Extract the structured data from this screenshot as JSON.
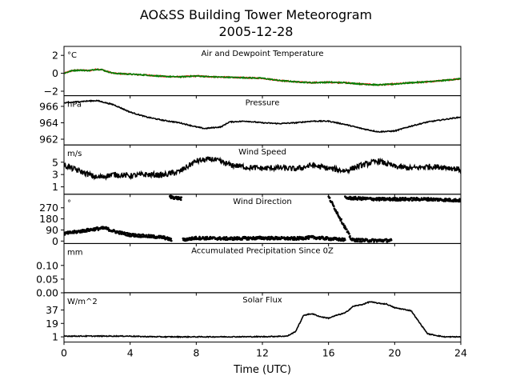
{
  "figure": {
    "title_line1": "AO&SS Building Tower Meteorogram",
    "title_line2": "2005-12-28",
    "xlabel": "Time (UTC)",
    "xticks": [
      "0",
      "4",
      "8",
      "12",
      "16",
      "20",
      "24"
    ],
    "xlim": [
      0,
      24
    ]
  },
  "chart_data": [
    {
      "type": "line",
      "title": "Air and Dewpoint Temperature",
      "unit": "°C",
      "ylim": [
        -2.5,
        3.0
      ],
      "yticks": [
        "2",
        "0",
        "−2"
      ],
      "ytick_values": [
        2,
        0,
        -2
      ],
      "series": [
        {
          "color": "#ff0000",
          "noise": 0.12,
          "x": [
            0,
            0.5,
            1,
            1.5,
            2,
            2.3,
            2.6,
            3,
            4,
            5,
            6,
            7,
            8,
            9,
            10,
            11,
            12,
            13,
            14,
            15,
            16,
            17,
            18,
            19,
            20,
            21,
            22,
            23,
            24
          ],
          "y": [
            0.0,
            0.3,
            0.35,
            0.3,
            0.45,
            0.4,
            0.2,
            0.0,
            -0.1,
            -0.2,
            -0.35,
            -0.4,
            -0.3,
            -0.4,
            -0.45,
            -0.5,
            -0.55,
            -0.8,
            -0.95,
            -1.05,
            -1.0,
            -1.05,
            -1.2,
            -1.3,
            -1.2,
            -1.05,
            -0.95,
            -0.8,
            -0.6
          ]
        },
        {
          "color": "#008000",
          "noise": 0.12,
          "x": [
            0,
            0.5,
            1,
            1.5,
            2,
            2.3,
            2.6,
            3,
            4,
            5,
            6,
            7,
            8,
            9,
            10,
            11,
            12,
            13,
            14,
            15,
            16,
            17,
            18,
            19,
            20,
            21,
            22,
            23,
            24
          ],
          "y": [
            0.0,
            0.3,
            0.35,
            0.3,
            0.45,
            0.4,
            0.2,
            0.0,
            -0.1,
            -0.2,
            -0.35,
            -0.4,
            -0.3,
            -0.4,
            -0.45,
            -0.5,
            -0.55,
            -0.8,
            -0.95,
            -1.05,
            -1.0,
            -1.05,
            -1.2,
            -1.3,
            -1.2,
            -1.05,
            -0.95,
            -0.8,
            -0.6
          ]
        }
      ]
    },
    {
      "type": "line",
      "title": "Pressure",
      "unit": "hPa",
      "ylim": [
        961.3,
        967.3
      ],
      "yticks": [
        "966",
        "964",
        "962"
      ],
      "ytick_values": [
        966,
        964,
        962
      ],
      "series": [
        {
          "color": "#000000",
          "noise": 0.12,
          "x": [
            0,
            0.5,
            1,
            2,
            3,
            4,
            5,
            6,
            7,
            8,
            8.5,
            9.5,
            10,
            11,
            12,
            13,
            14,
            15,
            16,
            17,
            18,
            19,
            20,
            21,
            22,
            23,
            24
          ],
          "y": [
            966.4,
            966.5,
            966.6,
            966.7,
            966.2,
            965.3,
            964.7,
            964.3,
            964.0,
            963.5,
            963.3,
            963.5,
            964.1,
            964.2,
            964.0,
            963.9,
            964.0,
            964.2,
            964.2,
            963.8,
            963.3,
            962.9,
            963.0,
            963.6,
            964.1,
            964.4,
            964.7
          ]
        }
      ]
    },
    {
      "type": "line",
      "title": "Wind Speed",
      "unit": "m/s",
      "ylim": [
        -0.2,
        7.8
      ],
      "yticks": [
        "5",
        "3",
        "1"
      ],
      "ytick_values": [
        5,
        3,
        1
      ],
      "series": [
        {
          "color": "#000000",
          "noise": 0.9,
          "x": [
            0,
            1,
            2,
            3,
            4,
            5,
            6,
            7,
            8,
            9,
            10,
            11,
            12,
            13,
            14,
            15,
            16,
            17,
            18,
            19,
            20,
            21,
            22,
            23,
            24
          ],
          "y": [
            4.5,
            3.5,
            2.5,
            3.0,
            2.8,
            3.0,
            2.9,
            3.5,
            5.2,
            5.5,
            4.6,
            4.2,
            4.0,
            4.1,
            3.9,
            4.5,
            4.0,
            3.6,
            4.5,
            5.2,
            4.3,
            4.0,
            4.3,
            4.2,
            3.8
          ]
        }
      ]
    },
    {
      "type": "scatter",
      "title": "Wind Direction",
      "unit": "°",
      "ylim": [
        -20,
        380
      ],
      "yticks": [
        "270",
        "180",
        "90",
        "0"
      ],
      "ytick_values": [
        270,
        180,
        90,
        0
      ],
      "series": [
        {
          "color": "#000000",
          "noise": 12,
          "segments": [
            {
              "x": [
                0,
                1,
                2,
                2.5,
                3,
                4,
                5,
                6,
                6.5
              ],
              "y": [
                60,
                80,
                100,
                105,
                80,
                50,
                40,
                30,
                10
              ]
            },
            {
              "x": [
                7.2,
                8,
                10,
                12,
                14,
                15,
                16,
                17
              ],
              "y": [
                10,
                25,
                20,
                25,
                20,
                30,
                20,
                10
              ]
            },
            {
              "x": [
                6.4,
                6.8,
                7.1
              ],
              "y": [
                360,
                350,
                345
              ]
            },
            {
              "x": [
                17,
                18,
                19,
                20,
                22,
                24
              ],
              "y": [
                350,
                345,
                340,
                340,
                340,
                330
              ]
            },
            {
              "x": [
                16,
                17.4,
                18.3,
                19.5,
                19.8
              ],
              "y": [
                360,
                10,
                5,
                5,
                5
              ]
            }
          ]
        }
      ]
    },
    {
      "type": "line",
      "title": "Accumulated Precipitation Since 0Z",
      "unit": "mm",
      "ylim": [
        0,
        0.18
      ],
      "yticks": [
        "0.10",
        "0.05",
        "0.00"
      ],
      "ytick_values": [
        0.1,
        0.05,
        0.0
      ],
      "series": [
        {
          "color": "#000000",
          "noise": 0,
          "x": [
            0,
            24
          ],
          "y": [
            0.0,
            0.0
          ]
        }
      ]
    },
    {
      "type": "line",
      "title": "Solar Flux",
      "unit": "W/m^2",
      "ylim": [
        -6,
        60
      ],
      "yticks": [
        "37",
        "19",
        "1"
      ],
      "ytick_values": [
        37,
        19,
        1
      ],
      "series": [
        {
          "color": "#000000",
          "noise": 1.2,
          "x": [
            0,
            4,
            4.5,
            6,
            8,
            12,
            13.5,
            14,
            14.5,
            15,
            15.5,
            16,
            16.5,
            17,
            17.5,
            18,
            18.5,
            19,
            19.5,
            20,
            20.5,
            21,
            21.5,
            22,
            23,
            24
          ],
          "y": [
            2,
            2,
            1.5,
            1,
            1,
            1.2,
            2,
            8,
            30,
            32,
            28,
            26,
            30,
            33,
            42,
            44,
            48,
            46,
            45,
            40,
            38,
            36,
            20,
            5,
            1,
            1
          ]
        }
      ]
    }
  ]
}
